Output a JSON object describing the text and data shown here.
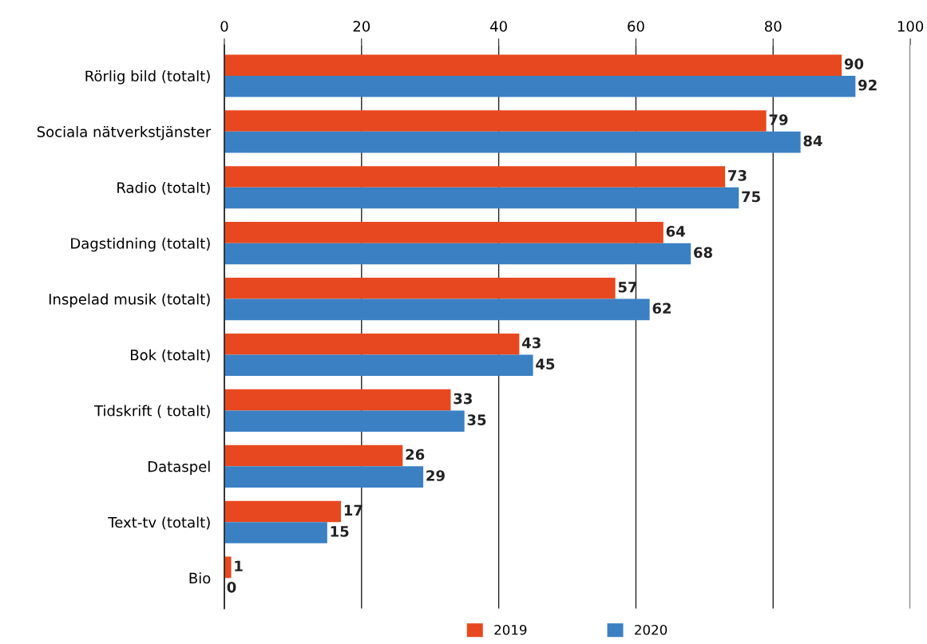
{
  "chart_data": {
    "type": "bar",
    "orientation": "horizontal",
    "categories": [
      "Rörlig bild (totalt)",
      "Sociala nätverkstjänster",
      "Radio (totalt)",
      "Dagstidning (totalt)",
      "Inspelad musik (totalt)",
      "Bok (totalt)",
      "Tidskrift ( totalt)",
      "Dataspel",
      "Text-tv (totalt)",
      "Bio"
    ],
    "series": [
      {
        "name": "2019",
        "color": "#e8481f",
        "values": [
          90,
          79,
          73,
          64,
          57,
          43,
          33,
          26,
          17,
          1
        ]
      },
      {
        "name": "2020",
        "color": "#3b80c3",
        "values": [
          92,
          84,
          75,
          68,
          62,
          45,
          35,
          29,
          15,
          0
        ]
      }
    ],
    "xlim": [
      0,
      100
    ],
    "xticks": [
      0,
      20,
      40,
      60,
      80,
      100
    ],
    "grid": "x",
    "legend": "bottom",
    "data_labels": true
  }
}
